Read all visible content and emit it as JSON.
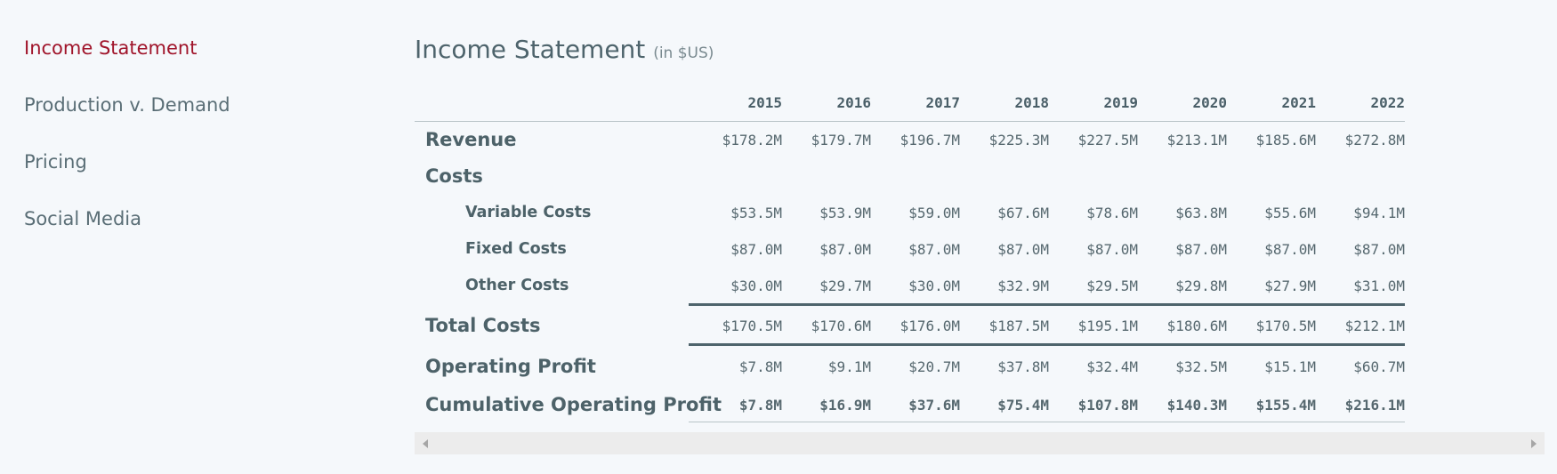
{
  "sidebar": {
    "items": [
      {
        "label": "Income Statement",
        "active": true
      },
      {
        "label": "Production v. Demand"
      },
      {
        "label": "Pricing"
      },
      {
        "label": "Social Media"
      }
    ]
  },
  "main": {
    "title": "Income Statement",
    "subtitle": "(in $US)"
  },
  "table": {
    "years": [
      "2015",
      "2016",
      "2017",
      "2018",
      "2019",
      "2020",
      "2021",
      "2022"
    ],
    "rows": {
      "revenue": {
        "label": "Revenue",
        "values": [
          "$178.2M",
          "$179.7M",
          "$196.7M",
          "$225.3M",
          "$227.5M",
          "$213.1M",
          "$185.6M",
          "$272.8M"
        ]
      },
      "costs": {
        "label": "Costs"
      },
      "variable_costs": {
        "label": "Variable Costs",
        "values": [
          "$53.5M",
          "$53.9M",
          "$59.0M",
          "$67.6M",
          "$78.6M",
          "$63.8M",
          "$55.6M",
          "$94.1M"
        ]
      },
      "fixed_costs": {
        "label": "Fixed Costs",
        "values": [
          "$87.0M",
          "$87.0M",
          "$87.0M",
          "$87.0M",
          "$87.0M",
          "$87.0M",
          "$87.0M",
          "$87.0M"
        ]
      },
      "other_costs": {
        "label": "Other Costs",
        "values": [
          "$30.0M",
          "$29.7M",
          "$30.0M",
          "$32.9M",
          "$29.5M",
          "$29.8M",
          "$27.9M",
          "$31.0M"
        ]
      },
      "total_costs": {
        "label": "Total Costs",
        "values": [
          "$170.5M",
          "$170.6M",
          "$176.0M",
          "$187.5M",
          "$195.1M",
          "$180.6M",
          "$170.5M",
          "$212.1M"
        ]
      },
      "operating_profit": {
        "label": "Operating Profit",
        "values": [
          "$7.8M",
          "$9.1M",
          "$20.7M",
          "$37.8M",
          "$32.4M",
          "$32.5M",
          "$15.1M",
          "$60.7M"
        ]
      },
      "cumulative_operating_profit": {
        "label": "Cumulative Operating Profit",
        "values": [
          "$7.8M",
          "$16.9M",
          "$37.6M",
          "$75.4M",
          "$107.8M",
          "$140.3M",
          "$155.4M",
          "$216.1M"
        ]
      }
    }
  }
}
